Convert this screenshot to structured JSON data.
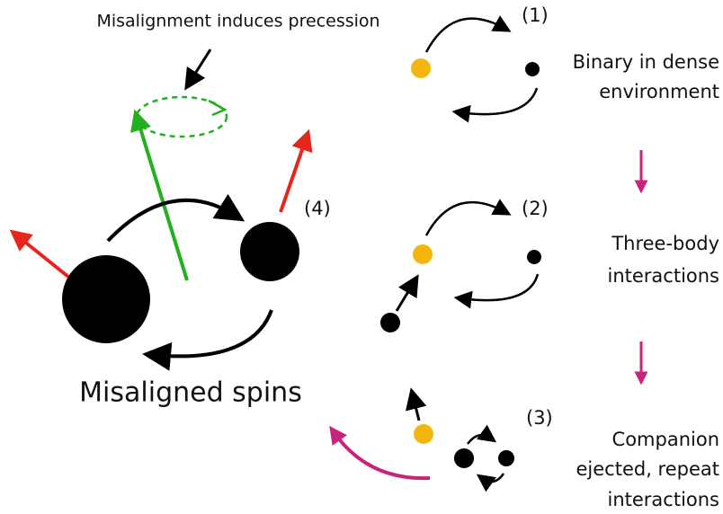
{
  "annotation": "Misalignment induces precession",
  "final": {
    "number": "(4)",
    "caption": "Misaligned spins"
  },
  "stages": [
    {
      "number": "(1)",
      "caption": [
        "Binary in dense",
        "environment"
      ]
    },
    {
      "number": "(2)",
      "caption": [
        "Three-body",
        "interactions"
      ]
    },
    {
      "number": "(3)",
      "caption": [
        "Companion",
        "ejected, repeat",
        "interactions"
      ]
    }
  ]
}
